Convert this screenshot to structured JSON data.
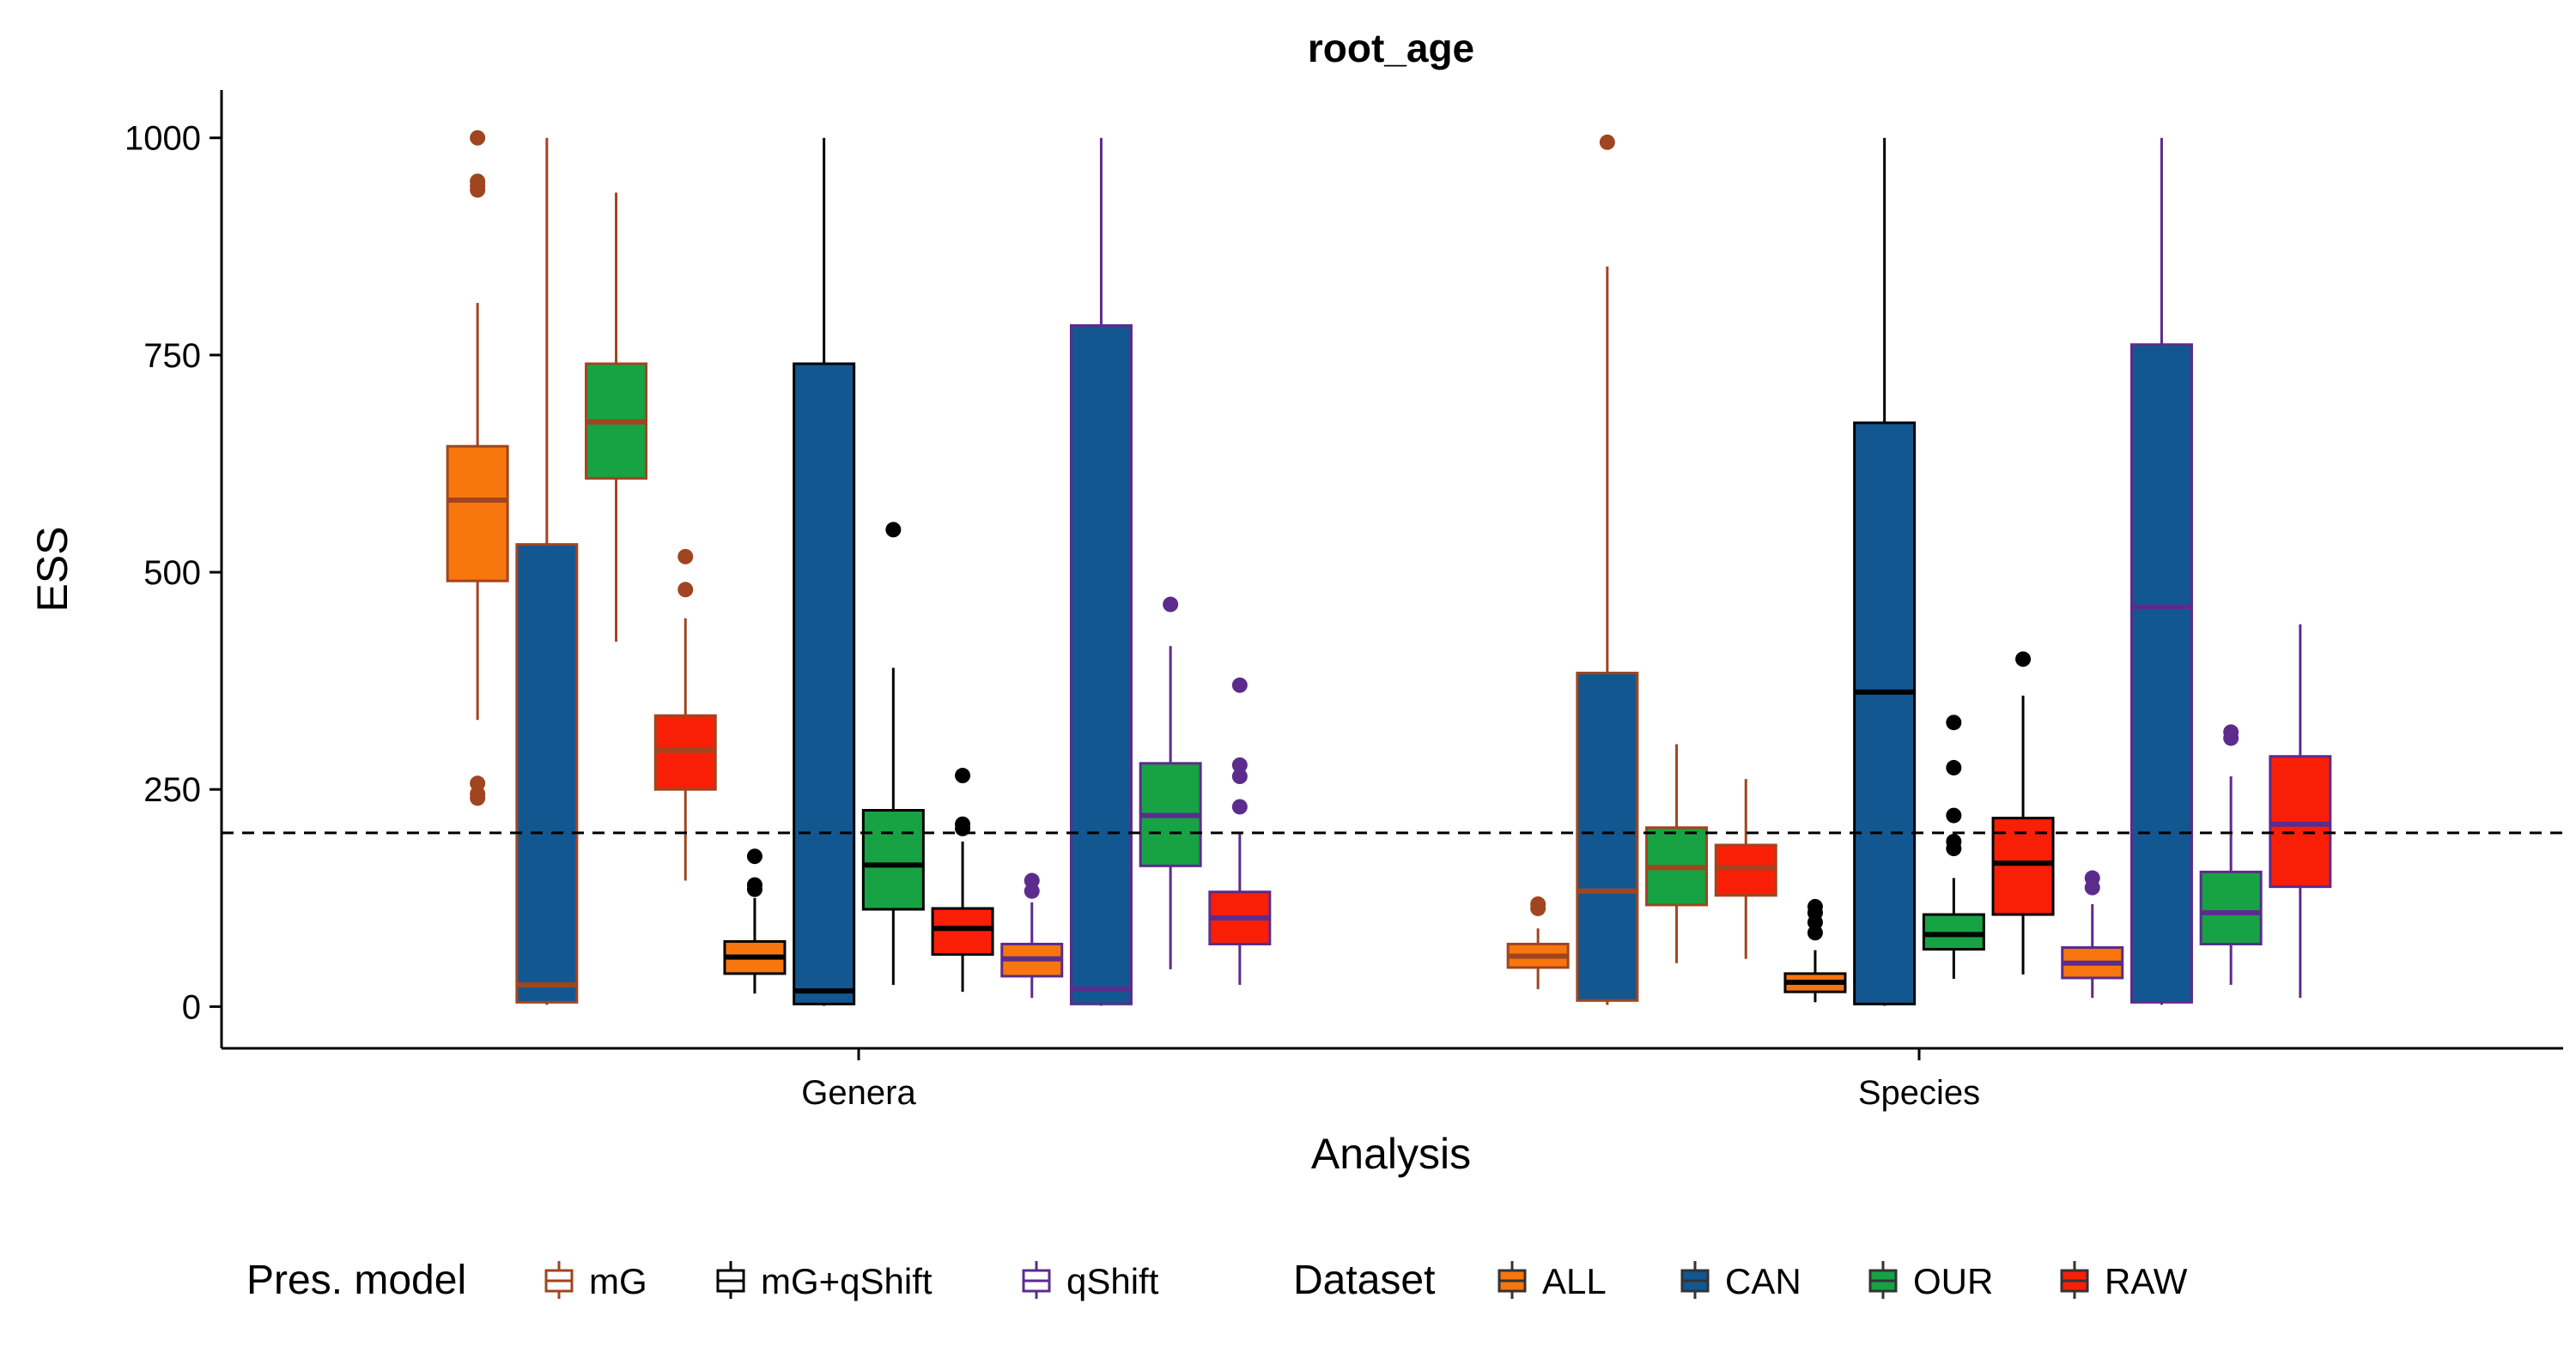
{
  "chart_data": {
    "type": "boxplot",
    "title": "root_age",
    "xlabel": "Analysis",
    "ylabel": "ESS",
    "categories": [
      "Genera",
      "Species"
    ],
    "ylim": [
      -48,
      1055
    ],
    "yticks": [
      0,
      250,
      500,
      750,
      1000
    ],
    "reference_line": 200,
    "grid": false,
    "legend_position": "bottom",
    "legends": {
      "pres_model": {
        "title": "Pres. model",
        "entries": [
          {
            "label": "mG",
            "color": "#A0451F"
          },
          {
            "label": "mG+qShift",
            "color": "#000000"
          },
          {
            "label": "qShift",
            "color": "#5B2C8C"
          }
        ]
      },
      "dataset": {
        "title": "Dataset",
        "entries": [
          {
            "label": "ALL",
            "color": "#F7760E"
          },
          {
            "label": "CAN",
            "color": "#135791"
          },
          {
            "label": "OUR",
            "color": "#17A244"
          },
          {
            "label": "RAW",
            "color": "#F91F07"
          }
        ]
      }
    },
    "boxes": [
      {
        "category": "Genera",
        "model": "mG",
        "dataset": "ALL",
        "q1": 490,
        "median": 583,
        "q3": 645,
        "whisker_low": 330,
        "whisker_high": 810,
        "outliers": [
          1000,
          950,
          945,
          940,
          257,
          245,
          240
        ]
      },
      {
        "category": "Genera",
        "model": "mG",
        "dataset": "CAN",
        "q1": 5,
        "median": 25,
        "q3": 532,
        "whisker_low": 2,
        "whisker_high": 1000,
        "outliers": []
      },
      {
        "category": "Genera",
        "model": "mG",
        "dataset": "OUR",
        "q1": 608,
        "median": 673,
        "q3": 740,
        "whisker_low": 420,
        "whisker_high": 937,
        "outliers": []
      },
      {
        "category": "Genera",
        "model": "mG",
        "dataset": "RAW",
        "q1": 250,
        "median": 295,
        "q3": 335,
        "whisker_low": 145,
        "whisker_high": 447,
        "outliers": [
          518,
          480
        ]
      },
      {
        "category": "Genera",
        "model": "mG+qShift",
        "dataset": "ALL",
        "q1": 38,
        "median": 57,
        "q3": 75,
        "whisker_low": 15,
        "whisker_high": 125,
        "outliers": [
          173,
          140,
          135
        ]
      },
      {
        "category": "Genera",
        "model": "mG+qShift",
        "dataset": "CAN",
        "q1": 3,
        "median": 18,
        "q3": 740,
        "whisker_low": 1,
        "whisker_high": 1000,
        "outliers": []
      },
      {
        "category": "Genera",
        "model": "mG+qShift",
        "dataset": "OUR",
        "q1": 112,
        "median": 163,
        "q3": 226,
        "whisker_low": 25,
        "whisker_high": 390,
        "outliers": [
          549
        ]
      },
      {
        "category": "Genera",
        "model": "mG+qShift",
        "dataset": "RAW",
        "q1": 60,
        "median": 90,
        "q3": 113,
        "whisker_low": 17,
        "whisker_high": 190,
        "outliers": [
          266,
          210,
          205
        ]
      },
      {
        "category": "Genera",
        "model": "qShift",
        "dataset": "ALL",
        "q1": 35,
        "median": 55,
        "q3": 72,
        "whisker_low": 10,
        "whisker_high": 120,
        "outliers": [
          145,
          133
        ]
      },
      {
        "category": "Genera",
        "model": "qShift",
        "dataset": "CAN",
        "q1": 3,
        "median": 20,
        "q3": 784,
        "whisker_low": 1,
        "whisker_high": 1000,
        "outliers": []
      },
      {
        "category": "Genera",
        "model": "qShift",
        "dataset": "OUR",
        "q1": 162,
        "median": 220,
        "q3": 280,
        "whisker_low": 43,
        "whisker_high": 415,
        "outliers": [
          463
        ]
      },
      {
        "category": "Genera",
        "model": "qShift",
        "dataset": "RAW",
        "q1": 72,
        "median": 102,
        "q3": 132,
        "whisker_low": 25,
        "whisker_high": 200,
        "outliers": [
          370,
          278,
          265,
          230
        ]
      },
      {
        "category": "Species",
        "model": "mG",
        "dataset": "ALL",
        "q1": 45,
        "median": 58,
        "q3": 72,
        "whisker_low": 20,
        "whisker_high": 90,
        "outliers": [
          118,
          113
        ]
      },
      {
        "category": "Species",
        "model": "mG",
        "dataset": "CAN",
        "q1": 7,
        "median": 133,
        "q3": 384,
        "whisker_low": 2,
        "whisker_high": 852,
        "outliers": [
          995
        ]
      },
      {
        "category": "Species",
        "model": "mG",
        "dataset": "OUR",
        "q1": 117,
        "median": 160,
        "q3": 206,
        "whisker_low": 50,
        "whisker_high": 302,
        "outliers": []
      },
      {
        "category": "Species",
        "model": "mG",
        "dataset": "RAW",
        "q1": 128,
        "median": 160,
        "q3": 186,
        "whisker_low": 55,
        "whisker_high": 262,
        "outliers": []
      },
      {
        "category": "Species",
        "model": "mG+qShift",
        "dataset": "ALL",
        "q1": 17,
        "median": 28,
        "q3": 38,
        "whisker_low": 5,
        "whisker_high": 65,
        "outliers": [
          115,
          108,
          97,
          85
        ]
      },
      {
        "category": "Species",
        "model": "mG+qShift",
        "dataset": "CAN",
        "q1": 3,
        "median": 362,
        "q3": 672,
        "whisker_low": 1,
        "whisker_high": 1000,
        "outliers": []
      },
      {
        "category": "Species",
        "model": "mG+qShift",
        "dataset": "OUR",
        "q1": 66,
        "median": 83,
        "q3": 106,
        "whisker_low": 32,
        "whisker_high": 148,
        "outliers": [
          327,
          275,
          220,
          190,
          182
        ]
      },
      {
        "category": "Species",
        "model": "mG+qShift",
        "dataset": "RAW",
        "q1": 106,
        "median": 165,
        "q3": 217,
        "whisker_low": 37,
        "whisker_high": 358,
        "outliers": [
          400
        ]
      },
      {
        "category": "Species",
        "model": "qShift",
        "dataset": "ALL",
        "q1": 33,
        "median": 50,
        "q3": 68,
        "whisker_low": 10,
        "whisker_high": 118,
        "outliers": [
          148,
          137
        ]
      },
      {
        "category": "Species",
        "model": "qShift",
        "dataset": "CAN",
        "q1": 5,
        "median": 460,
        "q3": 762,
        "whisker_low": 2,
        "whisker_high": 1000,
        "outliers": []
      },
      {
        "category": "Species",
        "model": "qShift",
        "dataset": "OUR",
        "q1": 72,
        "median": 108,
        "q3": 155,
        "whisker_low": 25,
        "whisker_high": 265,
        "outliers": [
          316,
          309
        ]
      },
      {
        "category": "Species",
        "model": "qShift",
        "dataset": "RAW",
        "q1": 138,
        "median": 210,
        "q3": 288,
        "whisker_low": 10,
        "whisker_high": 440,
        "outliers": []
      }
    ]
  }
}
